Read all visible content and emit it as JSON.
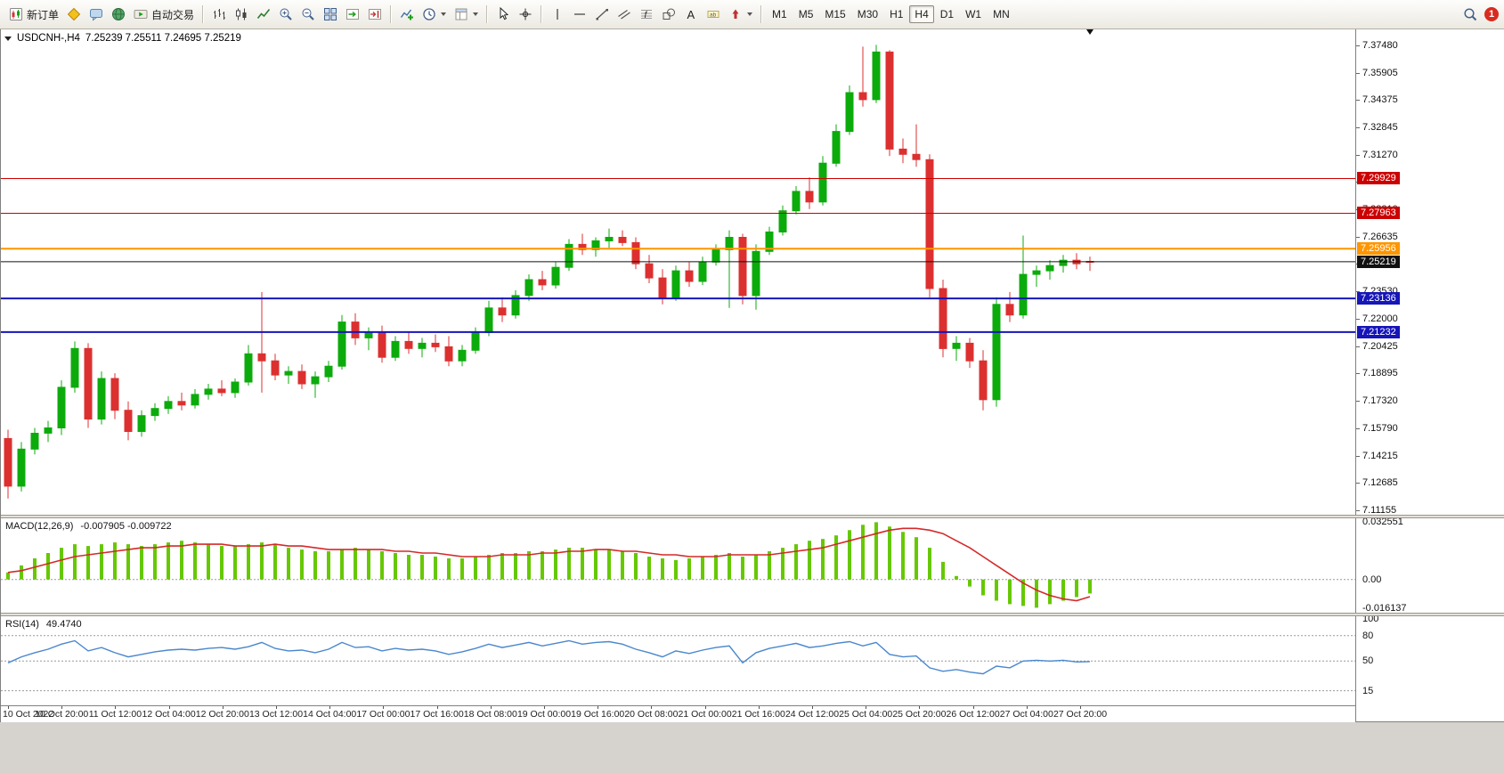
{
  "toolbar": {
    "groups": [
      {
        "name": "trade",
        "items": [
          {
            "icon": "new-order-icon",
            "label": "新订单"
          },
          {
            "icon": "metaeditor-icon"
          },
          {
            "icon": "chat-icon"
          },
          {
            "icon": "community-icon"
          },
          {
            "icon": "autotrading-icon",
            "label": "自动交易"
          }
        ]
      },
      {
        "name": "chart-view",
        "items": [
          {
            "icon": "bar-chart-icon"
          },
          {
            "icon": "candlestick-chart-icon"
          },
          {
            "icon": "line-chart-icon"
          },
          {
            "icon": "zoom-in-icon"
          },
          {
            "icon": "zoom-out-icon"
          },
          {
            "icon": "tile-windows-icon"
          },
          {
            "icon": "auto-scroll-icon"
          },
          {
            "icon": "chart-shift-icon"
          }
        ]
      },
      {
        "name": "insert",
        "items": [
          {
            "icon": "indicators-icon"
          },
          {
            "icon": "periods-icon",
            "dropdown": true
          },
          {
            "icon": "templates-icon",
            "dropdown": true
          }
        ]
      },
      {
        "name": "pointer",
        "items": [
          {
            "icon": "cursor-icon"
          },
          {
            "icon": "crosshair-icon"
          }
        ]
      },
      {
        "name": "objects",
        "items": [
          {
            "icon": "vertical-line-icon"
          },
          {
            "icon": "horizontal-line-icon"
          },
          {
            "icon": "trendline-icon"
          },
          {
            "icon": "channel-icon"
          },
          {
            "icon": "fibonacci-icon"
          },
          {
            "icon": "shapes-icon"
          },
          {
            "icon": "text-icon"
          },
          {
            "icon": "label-icon"
          },
          {
            "icon": "arrows-icon",
            "dropdown": true
          }
        ]
      },
      {
        "name": "timeframes",
        "items": [
          {
            "label": "M1"
          },
          {
            "label": "M5"
          },
          {
            "label": "M15"
          },
          {
            "label": "M30"
          },
          {
            "label": "H1"
          },
          {
            "label": "H4",
            "active": true
          },
          {
            "label": "D1"
          },
          {
            "label": "W1"
          },
          {
            "label": "MN"
          }
        ]
      }
    ],
    "right_items": [
      {
        "icon": "search-icon"
      },
      {
        "icon": "notification-badge",
        "badge": "1"
      }
    ]
  },
  "chart": {
    "symbol": "USDCNH-,H4",
    "ohlc": "7.25239 7.25511 7.24695 7.25219",
    "macd_panel": {
      "title": "MACD(12,26,9)",
      "values": "-0.007905 -0.009722"
    },
    "rsi_panel": {
      "title": "RSI(14)",
      "value": "49.4740"
    }
  },
  "colors": {
    "bull": "#0CAB0C",
    "bear": "#DC3030",
    "macd_hist": "#66C800",
    "macd_signal": "#D42A2A",
    "rsi_line": "#4A87CE",
    "axis_text": "#111111"
  },
  "chart_data": {
    "type": "candlestick",
    "symbol": "USDCNH-",
    "timeframe": "H4",
    "price_axis_labels": [
      "7.37480",
      "7.35905",
      "7.34375",
      "7.32845",
      "7.31270",
      "7.29740",
      "7.28210",
      "7.26635",
      "7.25105",
      "7.23530",
      "7.22000",
      "7.20425",
      "7.18895",
      "7.17320",
      "7.15790",
      "7.14215",
      "7.12685",
      "7.11155"
    ],
    "horizontal_lines": [
      {
        "name": "resistance-line-1",
        "price": 7.29929,
        "label": "7.29929",
        "color": "#CC0000",
        "width": 1,
        "badge": true
      },
      {
        "name": "resistance-line-2",
        "price": 7.27963,
        "label": "7.27963",
        "color": "#CC0000",
        "width": 1,
        "badge": true
      },
      {
        "name": "pivot-line",
        "price": 7.25956,
        "label": "7.25956",
        "color": "#FF9500",
        "width": 2,
        "badge": true
      },
      {
        "name": "current-price-line",
        "price": 7.25219,
        "label": "7.25219",
        "color": "#111111",
        "width": 1,
        "badge": true
      },
      {
        "name": "support-line-1",
        "price": 7.23136,
        "label": "7.23136",
        "color": "#1515B8",
        "width": 2,
        "badge": true
      },
      {
        "name": "support-line-2",
        "price": 7.21232,
        "label": "7.21232",
        "color": "#1515B8",
        "width": 2,
        "badge": true
      }
    ],
    "time_labels": [
      "10 Oct 2022",
      "10 Oct 20:00",
      "11 Oct 12:00",
      "12 Oct 04:00",
      "12 Oct 20:00",
      "13 Oct 12:00",
      "14 Oct 04:00",
      "17 Oct 00:00",
      "17 Oct 16:00",
      "18 Oct 08:00",
      "19 Oct 00:00",
      "19 Oct 16:00",
      "20 Oct 08:00",
      "21 Oct 00:00",
      "21 Oct 16:00",
      "24 Oct 12:00",
      "25 Oct 04:00",
      "25 Oct 20:00",
      "26 Oct 12:00",
      "27 Oct 04:00",
      "27 Oct 20:00"
    ],
    "candles_ohlc": [
      [
        7.152,
        7.157,
        7.118,
        7.125
      ],
      [
        7.125,
        7.15,
        7.122,
        7.146
      ],
      [
        7.146,
        7.158,
        7.143,
        7.155
      ],
      [
        7.155,
        7.162,
        7.15,
        7.158
      ],
      [
        7.158,
        7.185,
        7.154,
        7.181
      ],
      [
        7.181,
        7.207,
        7.178,
        7.203
      ],
      [
        7.203,
        7.206,
        7.158,
        7.163
      ],
      [
        7.163,
        7.19,
        7.16,
        7.186
      ],
      [
        7.186,
        7.189,
        7.163,
        7.168
      ],
      [
        7.168,
        7.173,
        7.151,
        7.156
      ],
      [
        7.156,
        7.168,
        7.153,
        7.165
      ],
      [
        7.165,
        7.172,
        7.162,
        7.169
      ],
      [
        7.169,
        7.176,
        7.166,
        7.173
      ],
      [
        7.173,
        7.178,
        7.168,
        7.171
      ],
      [
        7.171,
        7.18,
        7.169,
        7.177
      ],
      [
        7.177,
        7.183,
        7.174,
        7.18
      ],
      [
        7.18,
        7.185,
        7.176,
        7.178
      ],
      [
        7.178,
        7.186,
        7.175,
        7.184
      ],
      [
        7.184,
        7.205,
        7.182,
        7.2
      ],
      [
        7.2,
        7.235,
        7.178,
        7.196
      ],
      [
        7.196,
        7.2,
        7.185,
        7.188
      ],
      [
        7.188,
        7.193,
        7.183,
        7.19
      ],
      [
        7.19,
        7.194,
        7.18,
        7.183
      ],
      [
        7.183,
        7.19,
        7.175,
        7.187
      ],
      [
        7.187,
        7.196,
        7.184,
        7.193
      ],
      [
        7.193,
        7.222,
        7.191,
        7.218
      ],
      [
        7.218,
        7.223,
        7.205,
        7.209
      ],
      [
        7.209,
        7.215,
        7.202,
        7.212
      ],
      [
        7.212,
        7.216,
        7.195,
        7.198
      ],
      [
        7.198,
        7.21,
        7.196,
        7.207
      ],
      [
        7.207,
        7.212,
        7.2,
        7.203
      ],
      [
        7.203,
        7.209,
        7.198,
        7.206
      ],
      [
        7.206,
        7.211,
        7.201,
        7.204
      ],
      [
        7.204,
        7.21,
        7.193,
        7.196
      ],
      [
        7.196,
        7.205,
        7.193,
        7.202
      ],
      [
        7.202,
        7.215,
        7.2,
        7.212
      ],
      [
        7.212,
        7.23,
        7.21,
        7.226
      ],
      [
        7.226,
        7.232,
        7.218,
        7.222
      ],
      [
        7.222,
        7.236,
        7.22,
        7.233
      ],
      [
        7.233,
        7.245,
        7.23,
        7.242
      ],
      [
        7.242,
        7.247,
        7.236,
        7.239
      ],
      [
        7.239,
        7.252,
        7.237,
        7.249
      ],
      [
        7.249,
        7.265,
        7.247,
        7.262
      ],
      [
        7.262,
        7.268,
        7.256,
        7.259
      ],
      [
        7.259,
        7.266,
        7.255,
        7.264
      ],
      [
        7.264,
        7.271,
        7.26,
        7.266
      ],
      [
        7.266,
        7.27,
        7.261,
        7.263
      ],
      [
        7.263,
        7.266,
        7.248,
        7.251
      ],
      [
        7.251,
        7.256,
        7.24,
        7.243
      ],
      [
        7.243,
        7.248,
        7.228,
        7.232
      ],
      [
        7.232,
        7.25,
        7.23,
        7.247
      ],
      [
        7.247,
        7.252,
        7.238,
        7.241
      ],
      [
        7.241,
        7.255,
        7.239,
        7.252
      ],
      [
        7.252,
        7.262,
        7.25,
        7.259
      ],
      [
        7.259,
        7.27,
        7.226,
        7.266
      ],
      [
        7.266,
        7.268,
        7.228,
        7.233
      ],
      [
        7.233,
        7.262,
        7.225,
        7.258
      ],
      [
        7.258,
        7.272,
        7.256,
        7.269
      ],
      [
        7.269,
        7.284,
        7.267,
        7.281
      ],
      [
        7.281,
        7.295,
        7.279,
        7.292
      ],
      [
        7.292,
        7.3,
        7.282,
        7.286
      ],
      [
        7.286,
        7.312,
        7.284,
        7.308
      ],
      [
        7.308,
        7.33,
        7.306,
        7.326
      ],
      [
        7.326,
        7.352,
        7.324,
        7.348
      ],
      [
        7.348,
        7.374,
        7.34,
        7.344
      ],
      [
        7.344,
        7.375,
        7.342,
        7.371
      ],
      [
        7.371,
        7.372,
        7.312,
        7.316
      ],
      [
        7.316,
        7.322,
        7.308,
        7.313
      ],
      [
        7.313,
        7.33,
        7.306,
        7.31
      ],
      [
        7.31,
        7.313,
        7.232,
        7.237
      ],
      [
        7.237,
        7.242,
        7.198,
        7.203
      ],
      [
        7.203,
        7.21,
        7.196,
        7.206
      ],
      [
        7.206,
        7.209,
        7.192,
        7.196
      ],
      [
        7.196,
        7.202,
        7.168,
        7.174
      ],
      [
        7.174,
        7.232,
        7.17,
        7.228
      ],
      [
        7.228,
        7.235,
        7.218,
        7.222
      ],
      [
        7.222,
        7.267,
        7.22,
        7.245
      ],
      [
        7.245,
        7.25,
        7.238,
        7.247
      ],
      [
        7.247,
        7.253,
        7.242,
        7.25
      ],
      [
        7.25,
        7.256,
        7.246,
        7.253
      ],
      [
        7.253,
        7.257,
        7.248,
        7.251
      ],
      [
        7.25239,
        7.25511,
        7.24695,
        7.25219
      ]
    ],
    "indicators": {
      "macd": {
        "name": "MACD(12,26,9)",
        "last_values": "-0.007905 -0.009722",
        "axis": [
          {
            "text": "0.032551",
            "value": 0.032551
          },
          {
            "text": "0.00",
            "value": 0
          },
          {
            "text": "-0.016137",
            "value": -0.016137
          }
        ],
        "histogram": [
          0.004,
          0.008,
          0.012,
          0.015,
          0.018,
          0.02,
          0.019,
          0.02,
          0.021,
          0.02,
          0.019,
          0.02,
          0.021,
          0.022,
          0.021,
          0.02,
          0.019,
          0.019,
          0.02,
          0.021,
          0.02,
          0.018,
          0.017,
          0.016,
          0.016,
          0.017,
          0.018,
          0.017,
          0.016,
          0.015,
          0.014,
          0.014,
          0.013,
          0.012,
          0.012,
          0.013,
          0.014,
          0.015,
          0.015,
          0.016,
          0.016,
          0.017,
          0.018,
          0.018,
          0.017,
          0.017,
          0.016,
          0.015,
          0.013,
          0.012,
          0.011,
          0.012,
          0.013,
          0.014,
          0.015,
          0.013,
          0.014,
          0.016,
          0.018,
          0.02,
          0.022,
          0.023,
          0.025,
          0.028,
          0.031,
          0.0325,
          0.03,
          0.027,
          0.024,
          0.018,
          0.01,
          0.002,
          -0.004,
          -0.009,
          -0.012,
          -0.014,
          -0.015,
          -0.016,
          -0.014,
          -0.012,
          -0.01,
          -0.007905
        ],
        "signal": [
          0.004,
          0.005,
          0.007,
          0.009,
          0.011,
          0.013,
          0.014,
          0.015,
          0.016,
          0.017,
          0.018,
          0.018,
          0.019,
          0.019,
          0.02,
          0.02,
          0.02,
          0.019,
          0.019,
          0.019,
          0.02,
          0.019,
          0.019,
          0.018,
          0.017,
          0.017,
          0.017,
          0.017,
          0.017,
          0.016,
          0.016,
          0.015,
          0.015,
          0.014,
          0.013,
          0.013,
          0.013,
          0.014,
          0.014,
          0.014,
          0.015,
          0.015,
          0.016,
          0.016,
          0.017,
          0.017,
          0.016,
          0.016,
          0.015,
          0.014,
          0.014,
          0.013,
          0.013,
          0.013,
          0.014,
          0.014,
          0.014,
          0.014,
          0.015,
          0.016,
          0.017,
          0.018,
          0.02,
          0.022,
          0.024,
          0.026,
          0.028,
          0.029,
          0.029,
          0.028,
          0.026,
          0.022,
          0.018,
          0.013,
          0.008,
          0.003,
          -0.002,
          -0.006,
          -0.009,
          -0.011,
          -0.012,
          -0.009722
        ]
      },
      "rsi": {
        "name": "RSI(14)",
        "last_value": "49.4740",
        "axis": [
          {
            "text": "100",
            "value": 100
          },
          {
            "text": "80",
            "value": 80
          },
          {
            "text": "50",
            "value": 50
          },
          {
            "text": "15",
            "value": 15
          }
        ],
        "levels": [
          80,
          50,
          15
        ],
        "values": [
          48,
          55,
          60,
          64,
          70,
          74,
          62,
          66,
          60,
          55,
          58,
          61,
          63,
          64,
          63,
          65,
          66,
          64,
          67,
          72,
          65,
          62,
          63,
          60,
          64,
          72,
          66,
          67,
          62,
          65,
          63,
          64,
          62,
          58,
          61,
          65,
          70,
          66,
          69,
          72,
          68,
          71,
          74,
          70,
          72,
          73,
          70,
          64,
          60,
          55,
          62,
          59,
          63,
          66,
          68,
          48,
          60,
          65,
          68,
          71,
          66,
          68,
          71,
          73,
          68,
          72,
          58,
          55,
          56,
          42,
          38,
          40,
          37,
          35,
          44,
          42,
          50,
          51,
          50,
          51,
          49,
          49.47
        ]
      }
    }
  }
}
